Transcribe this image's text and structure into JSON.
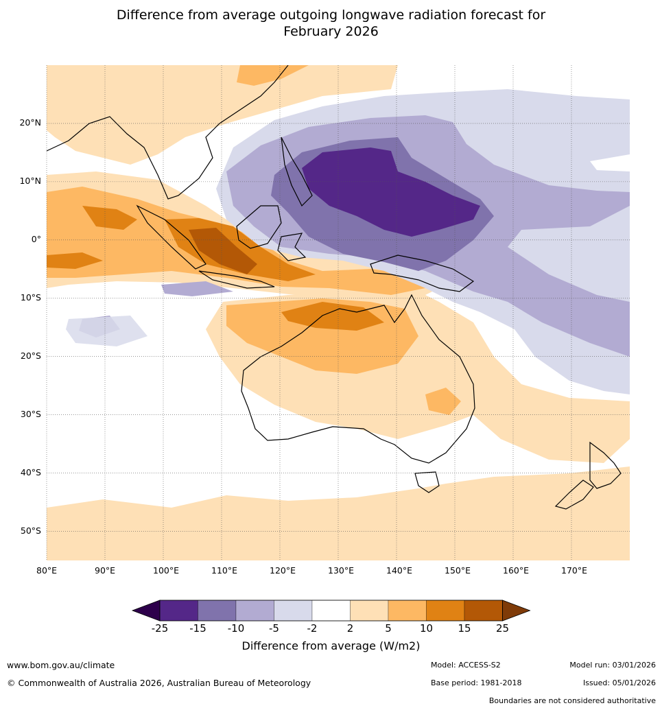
{
  "title": {
    "line1": "Difference from average outgoing longwave radiation forecast for",
    "line2": "February 2026"
  },
  "map": {
    "lon_range": [
      80,
      180
    ],
    "lat_range": [
      -55,
      30
    ],
    "lon_ticks": [
      {
        "lon": 80,
        "label": "80°E"
      },
      {
        "lon": 90,
        "label": "90°E"
      },
      {
        "lon": 100,
        "label": "100°E"
      },
      {
        "lon": 110,
        "label": "110°E"
      },
      {
        "lon": 120,
        "label": "120°E"
      },
      {
        "lon": 130,
        "label": "130°E"
      },
      {
        "lon": 140,
        "label": "140°E"
      },
      {
        "lon": 150,
        "label": "150°E"
      },
      {
        "lon": 160,
        "label": "160°E"
      },
      {
        "lon": 170,
        "label": "170°E"
      }
    ],
    "lat_ticks": [
      {
        "lat": 20,
        "label": "20°N"
      },
      {
        "lat": 10,
        "label": "10°N"
      },
      {
        "lat": 0,
        "label": "0°"
      },
      {
        "lat": -10,
        "label": "10°S"
      },
      {
        "lat": -20,
        "label": "20°S"
      },
      {
        "lat": -30,
        "label": "30°S"
      },
      {
        "lat": -40,
        "label": "40°S"
      },
      {
        "lat": -50,
        "label": "50°S"
      }
    ]
  },
  "colorbar": {
    "colors": [
      "#2d004b",
      "#542788",
      "#8073ac",
      "#b2abd2",
      "#d8daeb",
      "#ffffff",
      "#fee0b6",
      "#fdb863",
      "#e08214",
      "#b35806",
      "#7f3b08"
    ],
    "ticks": [
      "-25",
      "-15",
      "-10",
      "-5",
      "-2",
      "2",
      "5",
      "10",
      "15",
      "25"
    ],
    "title": "Difference from average (W/m2)"
  },
  "footer": {
    "url": "www.bom.gov.au/climate",
    "copyright": "© Commonwealth of Australia 2026, Australian Bureau of Meteorology",
    "model": "Model: ACCESS-S2",
    "base_period": "Base period: 1981-2018",
    "model_run": "Model run: 03/01/2026",
    "issued": "Issued: 05/01/2026",
    "disclaimer": "Boundaries are not considered authoritative"
  }
}
